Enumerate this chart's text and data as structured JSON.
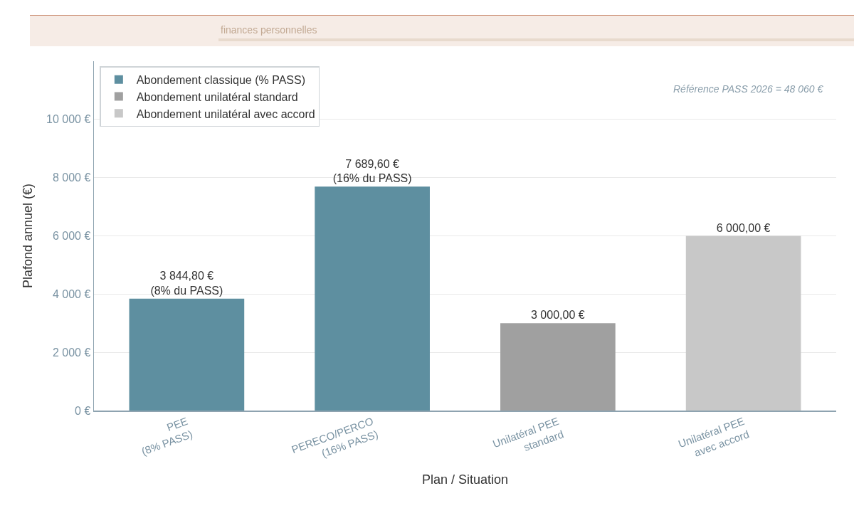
{
  "chart_data": {
    "type": "bar",
    "xlabel": "Plan / Situation",
    "ylabel": "Plafond annuel (€)",
    "categories": [
      "PEE\n(8% PASS)",
      "PERECO/PERCO\n(16% PASS)",
      "Unilatéral PEE\nstandard",
      "Unilatéral PEE\navec accord"
    ],
    "series": [
      {
        "name": "Abondement classique (% PASS)",
        "color": "#5e8fa0",
        "values": [
          3844.8,
          7689.6,
          null,
          null
        ],
        "value_labels": [
          "3 844,80 €\n(8% du PASS)",
          "7 689,60 €\n(16% du PASS)",
          null,
          null
        ]
      },
      {
        "name": "Abondement unilatéral standard",
        "color": "#a0a0a0",
        "values": [
          null,
          null,
          3000,
          null
        ],
        "value_labels": [
          null,
          null,
          "3 000,00 €",
          null
        ]
      },
      {
        "name": "Abondement unilatéral avec accord",
        "color": "#c8c8c8",
        "values": [
          null,
          null,
          null,
          6000
        ],
        "value_labels": [
          null,
          null,
          null,
          "6 000,00 €"
        ]
      }
    ],
    "ylim": [
      0,
      12000
    ],
    "yticks": [
      {
        "value": 0,
        "label": "0 €"
      },
      {
        "value": 2000,
        "label": "2 000 €"
      },
      {
        "value": 4000,
        "label": "4 000 €"
      },
      {
        "value": 6000,
        "label": "6 000 €"
      },
      {
        "value": 8000,
        "label": "8 000 €"
      },
      {
        "value": 10000,
        "label": "10 000 €"
      }
    ],
    "grid": "y",
    "legend": "top left",
    "annotations": [
      "finances personnelles",
      "Référence PASS 2026 = 48 060 €"
    ]
  }
}
